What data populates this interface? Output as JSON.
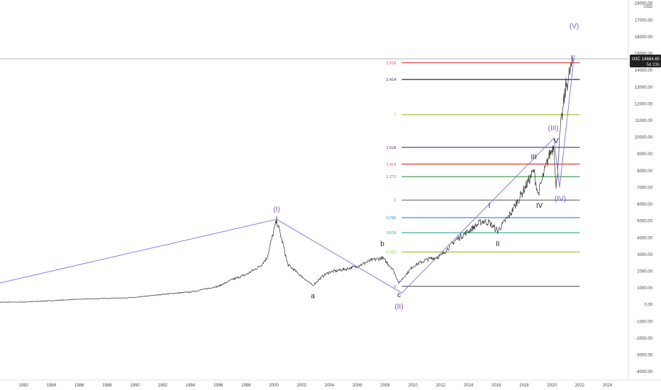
{
  "chart_data": {
    "type": "line",
    "symbol": "IXIC",
    "currency": "USD",
    "last_price": "14684.60",
    "countdown": "5d 23h",
    "ylim": [
      -4500,
      18200
    ],
    "xlim": [
      1980.3,
      2025.5
    ],
    "y_ticks": [
      "18000.00",
      "17000.00",
      "16000.00",
      "15000.00",
      "14000.00",
      "13000.00",
      "12000.00",
      "11000.00",
      "10000.00",
      "9000.00",
      "8000.00",
      "7000.00",
      "6000.00",
      "5000.00",
      "4000.00",
      "3000.00",
      "2000.00",
      "1000.00",
      "0.00",
      "-1000.00",
      "-2000.00",
      "-3000.00",
      "-4000.00"
    ],
    "x_ticks": [
      "1982",
      "1984",
      "1986",
      "1988",
      "1990",
      "1992",
      "1994",
      "1996",
      "1998",
      "2000",
      "2002",
      "2004",
      "2006",
      "2008",
      "2010",
      "2012",
      "2014",
      "2016",
      "2018",
      "2020",
      "2022",
      "2024"
    ],
    "series": [
      {
        "values_x": [
          1980.3,
          1982,
          1984,
          1986,
          1988,
          1990,
          1992,
          1994,
          1996,
          1997,
          1998,
          1999,
          1999.5,
          2000.2,
          2000.6,
          2001,
          2001.7,
          2002.8,
          2003.5,
          2004,
          2005,
          2006,
          2007,
          2007.8,
          2008.5,
          2009.0,
          2009.4,
          2010,
          2011,
          2012,
          2013,
          2014,
          2015,
          2015.5,
          2016.1,
          2017,
          2018,
          2018.7,
          2019,
          2019.8,
          2020.15,
          2020.3,
          2020.6,
          2021,
          2021.4,
          2021.6
        ],
        "values_y": [
          150,
          160,
          240,
          330,
          380,
          430,
          620,
          760,
          1100,
          1500,
          1800,
          2300,
          2800,
          5050,
          3800,
          2400,
          1900,
          1150,
          1700,
          1950,
          2100,
          2300,
          2650,
          2800,
          2200,
          1300,
          1700,
          2300,
          2700,
          2900,
          3800,
          4400,
          5000,
          4900,
          4400,
          5400,
          6900,
          8000,
          6600,
          8900,
          9600,
          6800,
          10400,
          13000,
          14200,
          14684
        ]
      }
    ],
    "fib_levels": [
      {
        "label": "2.618",
        "value": 14450,
        "color": "#e53935"
      },
      {
        "label": "2.414",
        "value": 13450,
        "color": "#1a237e"
      },
      {
        "label": "2",
        "value": 11350,
        "color": "#9ccc35"
      },
      {
        "label": "1.618",
        "value": 9400,
        "color": "#4a2c83"
      },
      {
        "label": "1.414",
        "value": 8400,
        "color": "#e53935"
      },
      {
        "label": "1.272",
        "value": 7650,
        "color": "#43a047"
      },
      {
        "label": "1",
        "value": 6250,
        "color": "#666666"
      },
      {
        "label": "0.786",
        "value": 5200,
        "color": "#1e88e5"
      },
      {
        "label": "0.618",
        "value": 4300,
        "color": "#26a69a"
      },
      {
        "label": "0.382",
        "value": 3150,
        "color": "#9ccc35"
      },
      {
        "label": "0",
        "value": 1100,
        "color": "#666666"
      }
    ],
    "fib_x_range": [
      2009.2,
      2022.0
    ],
    "wave_lines": [
      {
        "color": "#8c7ae6",
        "points": [
          [
            1980.3,
            1300
          ],
          [
            2000.2,
            5100
          ],
          [
            2009.2,
            700
          ],
          [
            2020.15,
            9950
          ],
          [
            2020.55,
            7000
          ],
          [
            2021.6,
            14900
          ]
        ]
      }
    ],
    "wave_labels": [
      {
        "text": "(I)",
        "x": 2000.2,
        "y": 5550,
        "color": "#7e57c2"
      },
      {
        "text": "a",
        "x": 2002.8,
        "y": 400,
        "color": "#222222"
      },
      {
        "text": "b",
        "x": 2007.8,
        "y": 3500,
        "color": "#222222"
      },
      {
        "text": "c",
        "x": 2009.0,
        "y": 450,
        "color": "#222222"
      },
      {
        "text": "(II)",
        "x": 2009.0,
        "y": -250,
        "color": "#7e57c2"
      },
      {
        "text": "I",
        "x": 2015.5,
        "y": 5800,
        "color": "#222222"
      },
      {
        "text": "II",
        "x": 2016.1,
        "y": 3500,
        "color": "#222222"
      },
      {
        "text": "III",
        "x": 2018.7,
        "y": 8700,
        "color": "#222222"
      },
      {
        "text": "IV",
        "x": 2019.1,
        "y": 5800,
        "color": "#222222"
      },
      {
        "text": "(III)",
        "x": 2020.1,
        "y": 10400,
        "color": "#7e57c2"
      },
      {
        "text": "V",
        "x": 2020.3,
        "y": 9650,
        "color": "#222222"
      },
      {
        "text": "(IV)",
        "x": 2020.6,
        "y": 6200,
        "color": "#7e57c2"
      },
      {
        "text": "(V)",
        "x": 2021.6,
        "y": 16500,
        "color": "#7e57c2"
      }
    ],
    "colors": {
      "price": "#333333",
      "wave_line": "#8c7ae6",
      "last_price_line": "#9e9e9e",
      "badge_bg": "#222222"
    }
  }
}
